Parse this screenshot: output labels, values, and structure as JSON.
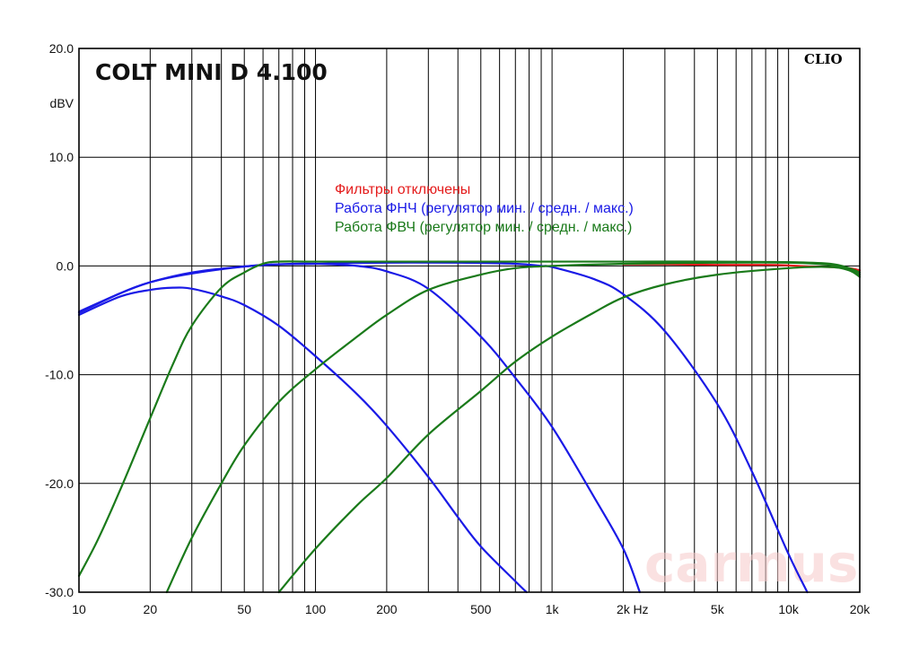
{
  "chart_data": {
    "type": "line",
    "title": "COLT MINI D 4.100",
    "brand": "CLIO",
    "watermark": "carmus",
    "xscale": "log",
    "xlim": [
      10,
      20000
    ],
    "ylim": [
      -30,
      20
    ],
    "ylabel": "dBV",
    "xunit": "Hz",
    "grid": true,
    "xticks": [
      {
        "v": 10,
        "label": "10"
      },
      {
        "v": 20,
        "label": "20"
      },
      {
        "v": 50,
        "label": "50"
      },
      {
        "v": 100,
        "label": "100"
      },
      {
        "v": 200,
        "label": "200"
      },
      {
        "v": 500,
        "label": "500"
      },
      {
        "v": 1000,
        "label": "1k"
      },
      {
        "v": 2000,
        "label": "2k"
      },
      {
        "v": 5000,
        "label": "5k"
      },
      {
        "v": 10000,
        "label": "10k"
      },
      {
        "v": 20000,
        "label": "20k"
      }
    ],
    "yticks": [
      {
        "v": 20,
        "label": "20.0"
      },
      {
        "v": 10,
        "label": "10.0"
      },
      {
        "v": 0,
        "label": "0.0"
      },
      {
        "v": -10,
        "label": "-10.0"
      },
      {
        "v": -20,
        "label": "-20.0"
      },
      {
        "v": -30,
        "label": "-30.0"
      }
    ],
    "legend": [
      {
        "label": "Фильтры отключены",
        "color": "#e41a1a"
      },
      {
        "label": "Работа ФНЧ (регулятор мин. / средн. / макс.)",
        "color": "#1a1ae6"
      },
      {
        "label": "Работа ФВЧ (регулятор мин. / средн. / макс.)",
        "color": "#1a7a1a"
      }
    ],
    "series": [
      {
        "group": "Фильтры отключены",
        "color": "#e41a1a",
        "points": [
          [
            2000,
            0.15
          ],
          [
            3000,
            0.15
          ],
          [
            5000,
            0.1
          ],
          [
            8000,
            0.1
          ],
          [
            10000,
            0.05
          ],
          [
            12000,
            -0.05
          ],
          [
            15000,
            -0.1
          ],
          [
            18000,
            -0.2
          ],
          [
            20000,
            -0.4
          ]
        ]
      },
      {
        "group": "Работа ФНЧ (регулятор мин. / средн. / макс.)",
        "color": "#1a1ae6",
        "points": [
          [
            10,
            -4.5
          ],
          [
            15,
            -2.8
          ],
          [
            20,
            -2.2
          ],
          [
            25,
            -2.0
          ],
          [
            30,
            -2.1
          ],
          [
            40,
            -2.8
          ],
          [
            50,
            -3.6
          ],
          [
            70,
            -5.5
          ],
          [
            100,
            -8.3
          ],
          [
            150,
            -11.8
          ],
          [
            200,
            -14.7
          ],
          [
            300,
            -19.4
          ],
          [
            400,
            -23.1
          ],
          [
            500,
            -25.8
          ],
          [
            700,
            -29.0
          ],
          [
            780,
            -30.0
          ]
        ]
      },
      {
        "group": "Работа ФНЧ (регулятор мин. / средн. / макс.)",
        "color": "#1a1ae6",
        "points": [
          [
            10,
            -4.2
          ],
          [
            15,
            -2.5
          ],
          [
            20,
            -1.5
          ],
          [
            30,
            -0.6
          ],
          [
            50,
            -0.05
          ],
          [
            80,
            0.2
          ],
          [
            100,
            0.2
          ],
          [
            150,
            0.0
          ],
          [
            200,
            -0.5
          ],
          [
            300,
            -2.1
          ],
          [
            500,
            -6.5
          ],
          [
            700,
            -10.3
          ],
          [
            1000,
            -14.8
          ],
          [
            1500,
            -21.2
          ],
          [
            2000,
            -26.0
          ],
          [
            2350,
            -30.0
          ]
        ]
      },
      {
        "group": "Работа ФНЧ (регулятор мин. / средн. / макс.)",
        "color": "#1a1ae6",
        "points": [
          [
            10,
            -4.3
          ],
          [
            20,
            -1.5
          ],
          [
            50,
            -0.05
          ],
          [
            100,
            0.2
          ],
          [
            200,
            0.3
          ],
          [
            400,
            0.3
          ],
          [
            700,
            0.2
          ],
          [
            900,
            0.0
          ],
          [
            1000,
            -0.1
          ],
          [
            1500,
            -1.2
          ],
          [
            2000,
            -2.6
          ],
          [
            3000,
            -6.0
          ],
          [
            5000,
            -12.7
          ],
          [
            7000,
            -18.9
          ],
          [
            10000,
            -26.5
          ],
          [
            12000,
            -30.0
          ]
        ]
      },
      {
        "group": "Работа ФВЧ (регулятор мин. / средн. / макс.)",
        "color": "#1a7a1a",
        "points": [
          [
            10,
            -28.5
          ],
          [
            12,
            -25.2
          ],
          [
            15,
            -20.5
          ],
          [
            20,
            -14.0
          ],
          [
            25,
            -9.0
          ],
          [
            30,
            -5.5
          ],
          [
            40,
            -2.0
          ],
          [
            50,
            -0.6
          ],
          [
            60,
            0.2
          ],
          [
            70,
            0.4
          ],
          [
            100,
            0.4
          ],
          [
            200,
            0.4
          ],
          [
            500,
            0.4
          ],
          [
            1000,
            0.4
          ],
          [
            2000,
            0.4
          ],
          [
            5000,
            0.4
          ],
          [
            10000,
            0.35
          ],
          [
            15000,
            0.2
          ],
          [
            18000,
            -0.2
          ],
          [
            20000,
            -0.6
          ]
        ]
      },
      {
        "group": "Работа ФВЧ (регулятор мин. / средн. / макс.)",
        "color": "#1a7a1a",
        "points": [
          [
            23.5,
            -30.0
          ],
          [
            30,
            -25.0
          ],
          [
            40,
            -20.0
          ],
          [
            50,
            -16.5
          ],
          [
            70,
            -12.5
          ],
          [
            100,
            -9.5
          ],
          [
            150,
            -6.5
          ],
          [
            200,
            -4.5
          ],
          [
            300,
            -2.2
          ],
          [
            500,
            -0.8
          ],
          [
            700,
            -0.2
          ],
          [
            1000,
            0.0
          ],
          [
            2000,
            0.2
          ],
          [
            5000,
            0.3
          ],
          [
            10000,
            0.3
          ],
          [
            15000,
            0.1
          ],
          [
            18000,
            -0.3
          ],
          [
            20000,
            -0.8
          ]
        ]
      },
      {
        "group": "Работа ФВЧ (регулятор мин. / средн. / макс.)",
        "color": "#1a7a1a",
        "points": [
          [
            70,
            -30.0
          ],
          [
            100,
            -26.0
          ],
          [
            150,
            -22.0
          ],
          [
            200,
            -19.5
          ],
          [
            300,
            -15.5
          ],
          [
            500,
            -11.5
          ],
          [
            700,
            -8.8
          ],
          [
            1000,
            -6.5
          ],
          [
            1500,
            -4.3
          ],
          [
            2000,
            -2.9
          ],
          [
            3000,
            -1.7
          ],
          [
            5000,
            -0.8
          ],
          [
            10000,
            -0.2
          ],
          [
            15000,
            -0.1
          ],
          [
            18000,
            -0.4
          ],
          [
            20000,
            -1.0
          ]
        ]
      }
    ]
  }
}
